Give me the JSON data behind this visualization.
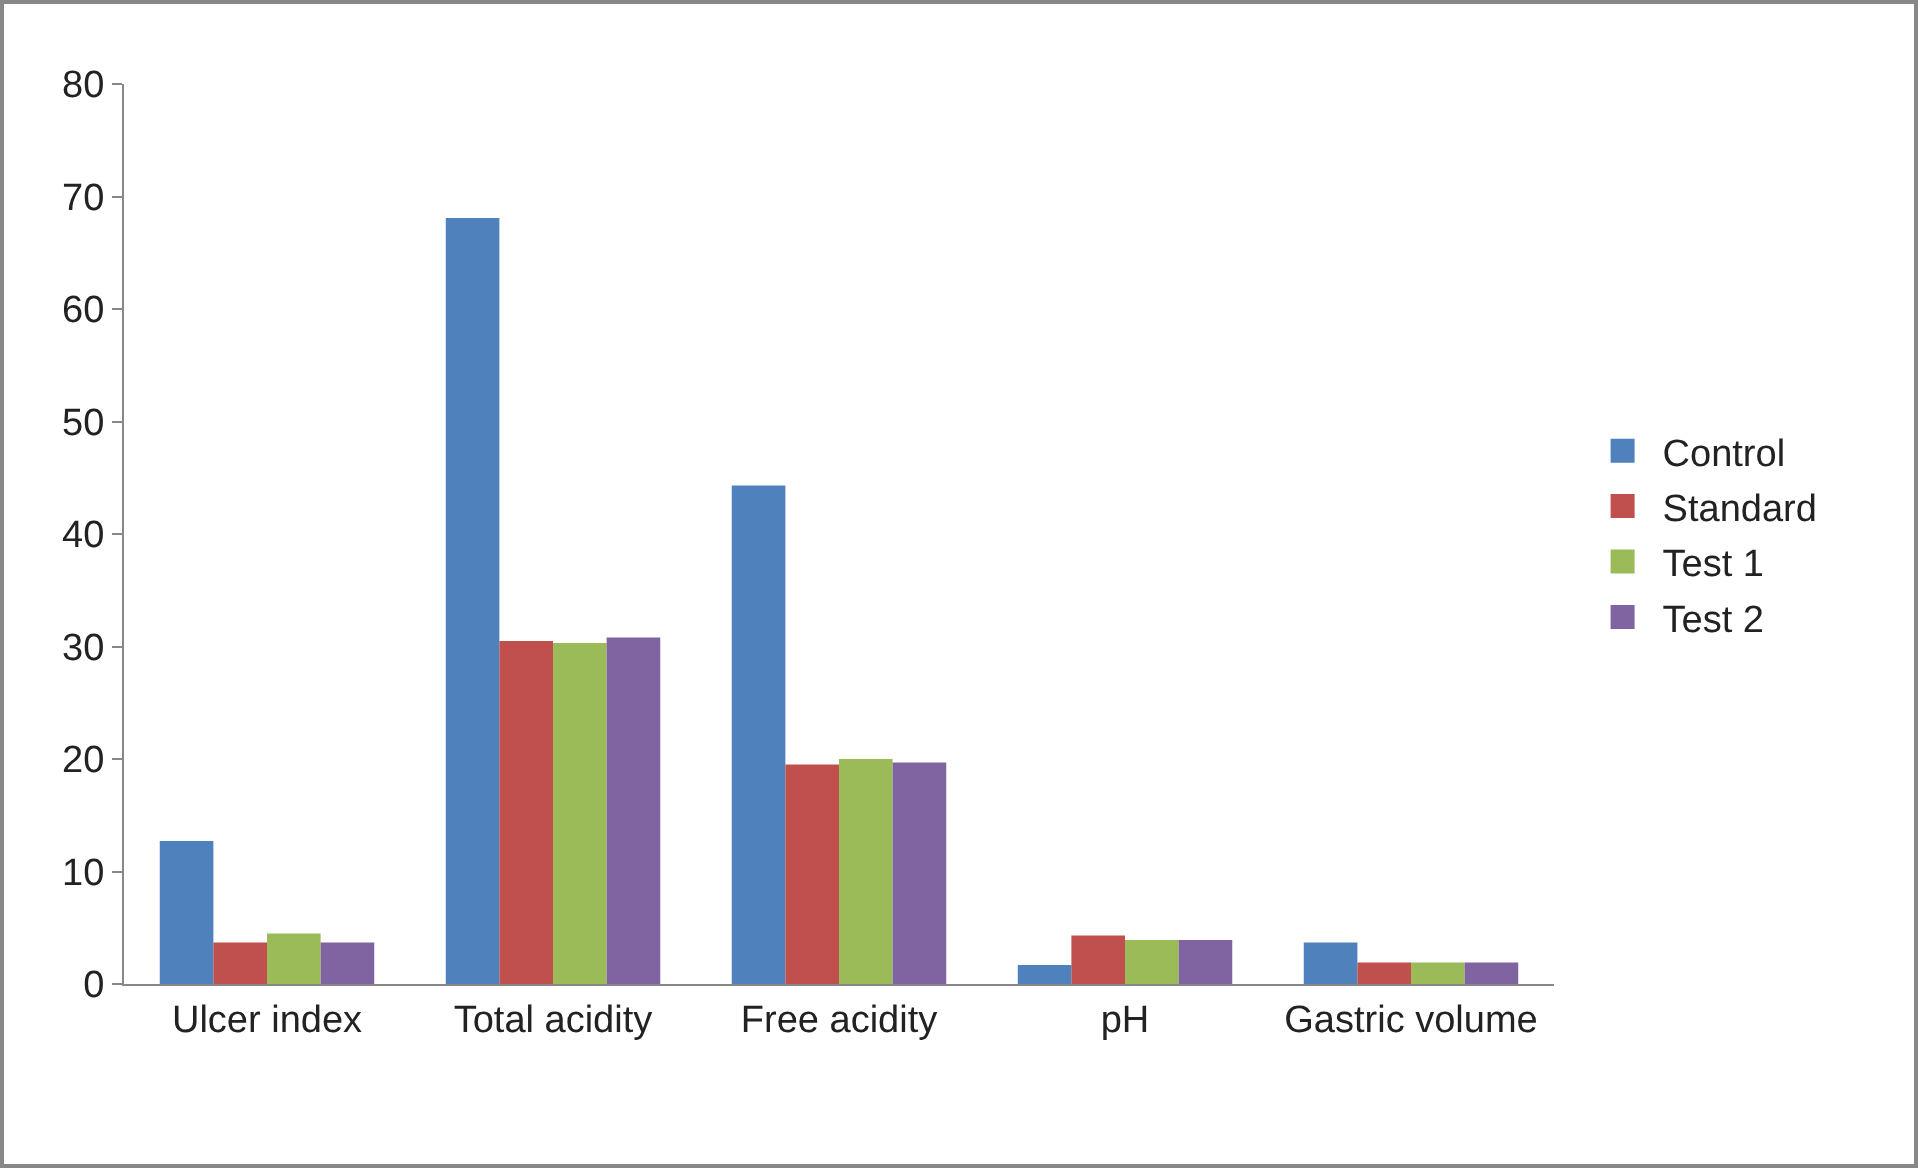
{
  "chart_data": {
    "type": "bar",
    "categories": [
      "Ulcer index",
      "Total acidity",
      "Free acidity",
      "pH",
      "Gastric volume"
    ],
    "series": [
      {
        "name": "Control",
        "color": "#4f81bd",
        "values": [
          12.7,
          68.1,
          44.3,
          1.7,
          3.7
        ]
      },
      {
        "name": "Standard",
        "color": "#c0504d",
        "values": [
          3.7,
          30.5,
          19.5,
          4.3,
          1.9
        ]
      },
      {
        "name": "Test 1",
        "color": "#9bbb59",
        "values": [
          4.5,
          30.3,
          20.0,
          3.9,
          1.9
        ]
      },
      {
        "name": "Test 2",
        "color": "#8064a2",
        "values": [
          3.7,
          30.8,
          19.7,
          3.9,
          1.9
        ]
      }
    ],
    "ylim": [
      0,
      80
    ],
    "yticks": [
      0,
      10,
      20,
      30,
      40,
      50,
      60,
      70,
      80
    ],
    "grid": false,
    "legend": "right"
  }
}
